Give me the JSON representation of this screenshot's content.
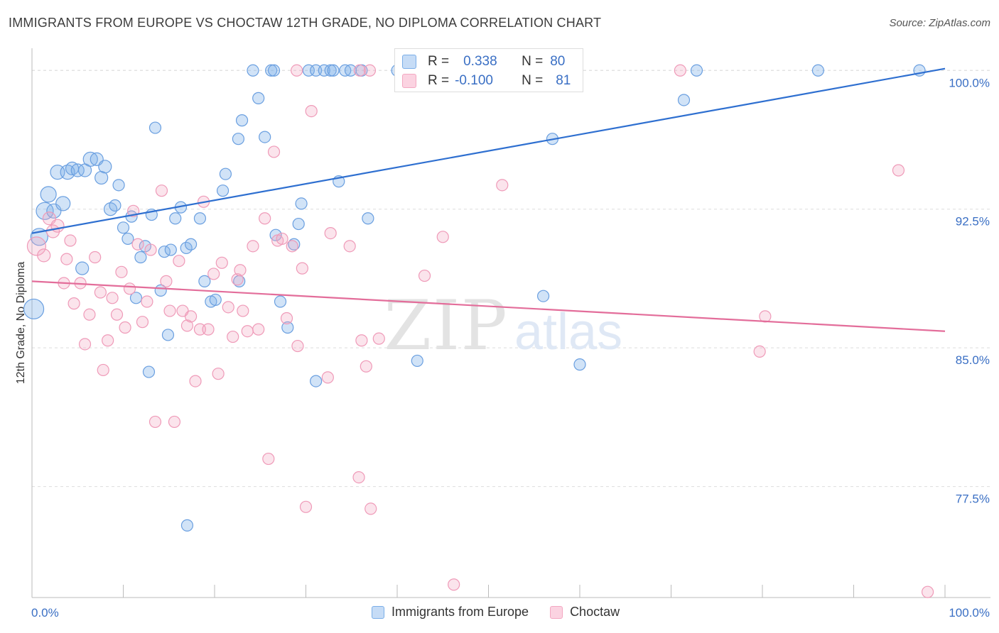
{
  "title": "IMMIGRANTS FROM EUROPE VS CHOCTAW 12TH GRADE, NO DIPLOMA CORRELATION CHART",
  "source": "Source: ZipAtlas.com",
  "watermark": {
    "zip": "ZIP",
    "atlas": "atlas"
  },
  "colors": {
    "blue": "#7aaee8",
    "pink": "#f3a7c1",
    "blue_line": "#2e6fd0",
    "pink_line": "#e36d9a",
    "tick_text": "#3a6fc4"
  },
  "stats": {
    "r_label": "R =",
    "n_label": "N =",
    "blue": {
      "r": "0.338",
      "n": "80"
    },
    "pink": {
      "r": "-0.100",
      "n": "81"
    }
  },
  "legend": [
    {
      "label": "Immigrants from Europe",
      "color": "#7aaee8"
    },
    {
      "label": "Choctaw",
      "color": "#f3a7c1"
    }
  ],
  "chart_data": {
    "type": "scatter",
    "title": "IMMIGRANTS FROM EUROPE VS CHOCTAW 12TH GRADE, NO DIPLOMA CORRELATION CHART",
    "xlabel": "",
    "ylabel": "12th Grade, No Diploma",
    "xlim": [
      0,
      100
    ],
    "ylim": [
      71.5,
      101.2
    ],
    "x_tick_labels": [
      "0.0%",
      "100.0%"
    ],
    "y_ticks": [
      77.5,
      85.0,
      92.5,
      100.0
    ],
    "y_tick_labels": [
      "77.5%",
      "85.0%",
      "92.5%",
      "100.0%"
    ],
    "grid": true,
    "legend_position": "bottom-center",
    "series": [
      {
        "name": "Immigrants from Europe",
        "trend": [
          [
            0,
            91.2
          ],
          [
            100,
            100.1
          ]
        ],
        "points": [
          [
            0.2,
            87.1,
            14
          ],
          [
            0.8,
            91.0,
            12
          ],
          [
            1.4,
            92.4,
            12
          ],
          [
            2.4,
            92.4,
            10
          ],
          [
            1.8,
            93.3,
            11
          ],
          [
            2.8,
            94.5,
            10
          ],
          [
            3.4,
            92.8,
            10
          ],
          [
            3.9,
            94.5,
            10
          ],
          [
            4.4,
            94.7,
            9
          ],
          [
            5.0,
            94.6,
            9
          ],
          [
            5.8,
            94.6,
            9
          ],
          [
            6.4,
            95.2,
            10
          ],
          [
            7.1,
            95.2,
            9
          ],
          [
            7.6,
            94.2,
            9
          ],
          [
            8.0,
            94.8,
            9
          ],
          [
            8.6,
            92.5,
            9
          ],
          [
            9.1,
            92.7,
            8
          ],
          [
            9.5,
            93.8,
            8
          ],
          [
            10.0,
            91.5,
            8
          ],
          [
            10.5,
            90.9,
            8
          ],
          [
            10.9,
            92.1,
            8
          ],
          [
            11.4,
            87.7,
            8
          ],
          [
            11.9,
            89.9,
            8
          ],
          [
            12.4,
            90.5,
            8
          ],
          [
            13.1,
            92.2,
            8
          ],
          [
            14.1,
            88.1,
            8
          ],
          [
            14.5,
            90.2,
            8
          ],
          [
            15.2,
            90.3,
            8
          ],
          [
            15.7,
            92.0,
            8
          ],
          [
            16.3,
            92.6,
            8
          ],
          [
            16.9,
            90.4,
            8
          ],
          [
            17.4,
            90.6,
            8
          ],
          [
            18.4,
            92.0,
            8
          ],
          [
            18.9,
            88.6,
            8
          ],
          [
            19.6,
            87.5,
            8
          ],
          [
            20.1,
            87.6,
            8
          ],
          [
            20.9,
            93.5,
            8
          ],
          [
            21.2,
            94.4,
            8
          ],
          [
            22.6,
            96.3,
            8
          ],
          [
            23.0,
            97.3,
            8
          ],
          [
            24.2,
            100.0,
            8
          ],
          [
            24.8,
            98.5,
            8
          ],
          [
            25.5,
            96.4,
            8
          ],
          [
            26.2,
            100.0,
            8
          ],
          [
            26.5,
            100.0,
            8
          ],
          [
            26.7,
            91.1,
            8
          ],
          [
            27.2,
            87.5,
            8
          ],
          [
            28.0,
            86.1,
            8
          ],
          [
            28.7,
            90.6,
            8
          ],
          [
            29.2,
            91.7,
            8
          ],
          [
            29.5,
            92.8,
            8
          ],
          [
            30.3,
            100.0,
            8
          ],
          [
            31.1,
            100.0,
            8
          ],
          [
            32.0,
            100.0,
            8
          ],
          [
            32.7,
            100.0,
            8
          ],
          [
            33.0,
            100.0,
            8
          ],
          [
            33.6,
            94.0,
            8
          ],
          [
            34.3,
            100.0,
            8
          ],
          [
            34.9,
            100.0,
            8
          ],
          [
            36.1,
            100.0,
            8
          ],
          [
            36.8,
            92.0,
            8
          ],
          [
            40.0,
            100.0,
            8
          ],
          [
            40.8,
            100.0,
            8
          ],
          [
            13.5,
            96.9,
            8
          ],
          [
            14.9,
            85.7,
            8
          ],
          [
            12.8,
            83.7,
            8
          ],
          [
            17.0,
            75.4,
            8
          ],
          [
            22.7,
            88.6,
            8
          ],
          [
            31.1,
            83.2,
            8
          ],
          [
            42.2,
            84.3,
            8
          ],
          [
            47.6,
            100.0,
            8
          ],
          [
            49.8,
            100.0,
            8
          ],
          [
            56.0,
            87.8,
            8
          ],
          [
            57.0,
            96.3,
            8
          ],
          [
            60.0,
            84.1,
            8
          ],
          [
            71.4,
            98.4,
            8
          ],
          [
            72.8,
            100.0,
            8
          ],
          [
            86.1,
            100.0,
            8
          ],
          [
            97.2,
            100.0,
            8
          ],
          [
            5.5,
            89.3,
            9
          ]
        ]
      },
      {
        "name": "Choctaw",
        "trend": [
          [
            0,
            88.6
          ],
          [
            100,
            85.9
          ]
        ],
        "points": [
          [
            0.5,
            90.5,
            13
          ],
          [
            1.3,
            90.0,
            9
          ],
          [
            1.9,
            92.0,
            9
          ],
          [
            2.3,
            91.3,
            9
          ],
          [
            2.8,
            91.6,
            9
          ],
          [
            3.5,
            88.5,
            8
          ],
          [
            3.8,
            89.8,
            8
          ],
          [
            4.2,
            90.8,
            8
          ],
          [
            4.6,
            87.4,
            8
          ],
          [
            5.3,
            88.5,
            8
          ],
          [
            5.8,
            85.2,
            8
          ],
          [
            6.3,
            86.8,
            8
          ],
          [
            6.9,
            89.9,
            8
          ],
          [
            7.5,
            88.0,
            8
          ],
          [
            7.8,
            83.8,
            8
          ],
          [
            8.3,
            85.4,
            8
          ],
          [
            8.8,
            87.7,
            8
          ],
          [
            9.3,
            86.8,
            8
          ],
          [
            9.8,
            89.1,
            8
          ],
          [
            10.2,
            86.1,
            8
          ],
          [
            10.7,
            88.2,
            8
          ],
          [
            11.1,
            92.4,
            8
          ],
          [
            11.6,
            90.6,
            8
          ],
          [
            12.1,
            86.4,
            8
          ],
          [
            12.6,
            87.5,
            8
          ],
          [
            13.0,
            90.3,
            8
          ],
          [
            13.5,
            81.0,
            8
          ],
          [
            14.2,
            93.5,
            8
          ],
          [
            14.7,
            88.6,
            8
          ],
          [
            15.1,
            87.0,
            8
          ],
          [
            15.6,
            81.0,
            8
          ],
          [
            16.1,
            89.7,
            8
          ],
          [
            16.5,
            87.0,
            8
          ],
          [
            17.0,
            86.2,
            8
          ],
          [
            17.4,
            86.7,
            8
          ],
          [
            17.9,
            83.2,
            8
          ],
          [
            18.4,
            86.0,
            8
          ],
          [
            18.8,
            92.9,
            8
          ],
          [
            19.3,
            86.0,
            8
          ],
          [
            19.9,
            89.0,
            8
          ],
          [
            20.4,
            83.6,
            8
          ],
          [
            20.8,
            89.6,
            8
          ],
          [
            21.5,
            87.2,
            8
          ],
          [
            22.0,
            85.6,
            8
          ],
          [
            22.5,
            88.7,
            8
          ],
          [
            22.8,
            89.2,
            8
          ],
          [
            23.1,
            87.0,
            8
          ],
          [
            23.6,
            85.9,
            8
          ],
          [
            24.2,
            90.5,
            8
          ],
          [
            24.8,
            86.0,
            8
          ],
          [
            25.5,
            92.0,
            8
          ],
          [
            25.9,
            79.0,
            8
          ],
          [
            26.5,
            95.6,
            8
          ],
          [
            26.9,
            90.8,
            8
          ],
          [
            27.4,
            90.9,
            8
          ],
          [
            27.9,
            86.6,
            8
          ],
          [
            28.5,
            90.5,
            8
          ],
          [
            29.1,
            85.1,
            8
          ],
          [
            29.6,
            89.3,
            8
          ],
          [
            30.0,
            76.4,
            8
          ],
          [
            30.6,
            97.8,
            8
          ],
          [
            32.4,
            83.4,
            8
          ],
          [
            32.7,
            91.2,
            8
          ],
          [
            34.8,
            90.5,
            8
          ],
          [
            35.8,
            78.0,
            8
          ],
          [
            36.1,
            85.4,
            8
          ],
          [
            36.6,
            84.0,
            8
          ],
          [
            37.0,
            100.0,
            8
          ],
          [
            37.1,
            76.3,
            8
          ],
          [
            38.0,
            85.5,
            8
          ],
          [
            43.0,
            88.9,
            8
          ],
          [
            45.0,
            91.0,
            8
          ],
          [
            46.2,
            72.2,
            8
          ],
          [
            51.5,
            93.8,
            8
          ],
          [
            71.0,
            100.0,
            8
          ],
          [
            79.7,
            84.8,
            8
          ],
          [
            80.3,
            86.7,
            8
          ],
          [
            94.9,
            94.6,
            8
          ],
          [
            98.1,
            71.8,
            8
          ],
          [
            29.0,
            100.0,
            8
          ],
          [
            35.9,
            100.0,
            8
          ]
        ]
      }
    ]
  }
}
